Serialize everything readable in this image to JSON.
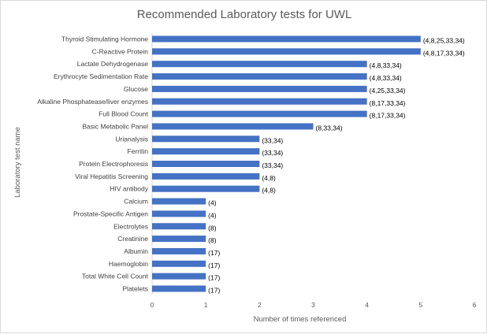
{
  "chart_data": {
    "type": "bar",
    "orientation": "horizontal",
    "title": "Recommended  Laboratory tests for UWL",
    "xlabel": "Number of times referenced",
    "ylabel": "Laboratory test name",
    "xlim": [
      0,
      6
    ],
    "xticks": [
      "0",
      "1",
      "2",
      "3",
      "4",
      "5",
      "6"
    ],
    "grid": false,
    "bar_color": "#4472c4",
    "categories": [
      "Thyroid Stimulating Hormone",
      "C-Reactive Protein",
      "Lactate Dehydrogenase",
      "Erythrocyte Sedimentation Rate",
      "Glucose",
      "Alkaline Phosphatease/liver enzymes",
      "Full Blood Count",
      "Basic Metabolic Panel",
      "Urianalysis",
      "Ferritin",
      "Protein Electrophoresis",
      "Viral Hepatitis Screening",
      "HIV antibody",
      "Calcium",
      "Prostate-Specific Antigen",
      "Electrolytes",
      "Creatinine",
      "Albumin",
      "Haemoglobin",
      "Total White Cell Count",
      "Platelets"
    ],
    "values": [
      5,
      5,
      4,
      4,
      4,
      4,
      4,
      3,
      2,
      2,
      2,
      2,
      2,
      1,
      1,
      1,
      1,
      1,
      1,
      1,
      1
    ],
    "data_labels": [
      "(4,8,25,33,34)",
      "(4,8,17,33,34)",
      "(4,8,33,34)",
      "(4,8,33,34)",
      "(4,25,33,34)",
      "(8,17,33,34)",
      "(8,17,33,34)",
      "(8,33,34)",
      "(33,34)",
      "(33,34)",
      "(33,34)",
      "(4,8)",
      "(4,8)",
      "(4)",
      "(4)",
      "(8)",
      "(8)",
      "(17)",
      "(17)",
      "(17)",
      "(17)"
    ]
  }
}
